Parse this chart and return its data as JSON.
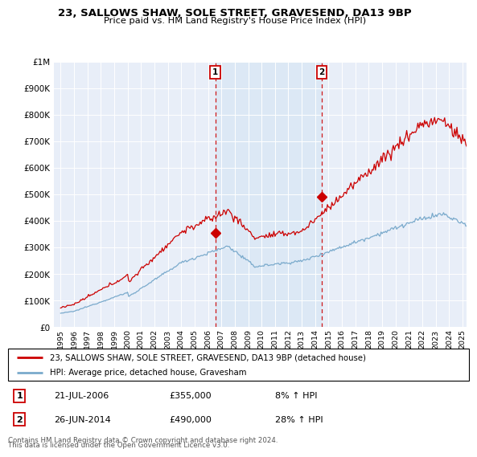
{
  "title": "23, SALLOWS SHAW, SOLE STREET, GRAVESEND, DA13 9BP",
  "subtitle": "Price paid vs. HM Land Registry's House Price Index (HPI)",
  "legend_line1": "23, SALLOWS SHAW, SOLE STREET, GRAVESEND, DA13 9BP (detached house)",
  "legend_line2": "HPI: Average price, detached house, Gravesham",
  "sale1_date": "21-JUL-2006",
  "sale1_price": 355000,
  "sale1_pct": "8%",
  "sale2_date": "26-JUN-2014",
  "sale2_price": 490000,
  "sale2_pct": "28%",
  "footer1": "Contains HM Land Registry data © Crown copyright and database right 2024.",
  "footer2": "This data is licensed under the Open Government Licence v3.0.",
  "red_color": "#cc0000",
  "blue_color": "#7aaacc",
  "shade_color": "#dce8f5",
  "background_color": "#e8eef8",
  "ylim": [
    0,
    1000000
  ],
  "yticks": [
    0,
    100000,
    200000,
    300000,
    400000,
    500000,
    600000,
    700000,
    800000,
    900000,
    1000000
  ],
  "sale1_x": 2006.55,
  "sale2_x": 2014.49,
  "xmin": 1994.5,
  "xmax": 2025.3
}
